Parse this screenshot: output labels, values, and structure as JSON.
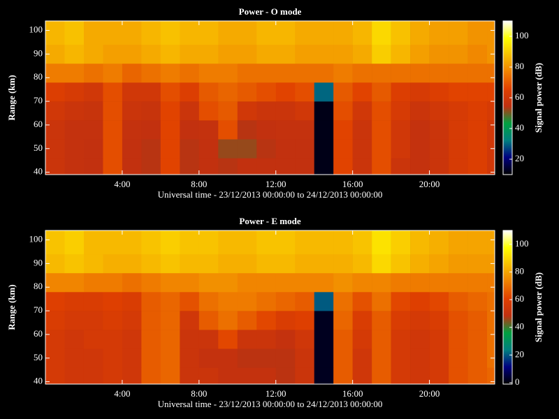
{
  "chart_data": [
    {
      "type": "heatmap",
      "title": "Power - O mode",
      "xlabel": "Universal time - 23/12/2013 00:00:00 to 24/12/2013 00:00:00",
      "ylabel": "Range (km)",
      "colorbar_label": "Signal power (dB)",
      "xlim": [
        0,
        23.4
      ],
      "ylim": [
        39,
        104
      ],
      "xticks": [
        {
          "value": 4,
          "label": "4:00"
        },
        {
          "value": 8,
          "label": "8:00"
        },
        {
          "value": 12,
          "label": "12:00"
        },
        {
          "value": 16,
          "label": "16:00"
        },
        {
          "value": 20,
          "label": "20:00"
        }
      ],
      "yticks": [
        40,
        50,
        60,
        70,
        80,
        90,
        100
      ],
      "zlim": [
        10,
        110
      ],
      "zticks": [
        20,
        40,
        60,
        80,
        100
      ],
      "colormap": [
        "#000000",
        "#000080",
        "#008080",
        "#00a040",
        "#c03010",
        "#e04000",
        "#f08000",
        "#f8c000",
        "#ffff00",
        "#ffffff"
      ],
      "x_bins": [
        0,
        1,
        2,
        3,
        4,
        5,
        6,
        7,
        8,
        9,
        10,
        11,
        12,
        13,
        14,
        15,
        16,
        17,
        18,
        19,
        20,
        21,
        22,
        23,
        23.4
      ],
      "y_bins": [
        39,
        46,
        54,
        62,
        70,
        78,
        86,
        94,
        104
      ],
      "values": [
        [
          58,
          56,
          55,
          68,
          55,
          54,
          66,
          54,
          55,
          54,
          55,
          55,
          55,
          55,
          12,
          66,
          58,
          68,
          58,
          56,
          58,
          62,
          64,
          60
        ],
        [
          58,
          56,
          55,
          68,
          55,
          54,
          66,
          54,
          55,
          52,
          52,
          54,
          55,
          55,
          12,
          66,
          58,
          68,
          60,
          56,
          58,
          62,
          64,
          60
        ],
        [
          58,
          56,
          56,
          68,
          56,
          55,
          66,
          55,
          56,
          68,
          54,
          55,
          56,
          56,
          12,
          66,
          58,
          68,
          60,
          56,
          58,
          62,
          64,
          60
        ],
        [
          60,
          58,
          57,
          68,
          58,
          57,
          66,
          58,
          68,
          70,
          60,
          58,
          58,
          60,
          12,
          68,
          60,
          68,
          62,
          58,
          60,
          62,
          64,
          62
        ],
        [
          64,
          62,
          60,
          68,
          60,
          60,
          68,
          64,
          70,
          72,
          70,
          68,
          66,
          68,
          30,
          70,
          66,
          70,
          64,
          62,
          64,
          66,
          66,
          66
        ],
        [
          76,
          76,
          74,
          76,
          72,
          74,
          76,
          74,
          76,
          76,
          74,
          74,
          74,
          74,
          74,
          76,
          74,
          74,
          74,
          74,
          74,
          74,
          74,
          74
        ],
        [
          84,
          86,
          84,
          82,
          82,
          84,
          86,
          84,
          84,
          82,
          82,
          84,
          84,
          82,
          82,
          82,
          84,
          90,
          86,
          82,
          80,
          80,
          78,
          80
        ],
        [
          86,
          88,
          84,
          84,
          84,
          86,
          88,
          86,
          86,
          84,
          84,
          86,
          86,
          84,
          84,
          84,
          86,
          92,
          88,
          84,
          82,
          82,
          80,
          80
        ]
      ]
    },
    {
      "type": "heatmap",
      "title": "Power - E mode",
      "xlabel": "Universal time - 23/12/2013 00:00:00 to 24/12/2013 00:00:00",
      "ylabel": "Range (km)",
      "colorbar_label": "Signal power (dB)",
      "xlim": [
        0,
        23.4
      ],
      "ylim": [
        39,
        104
      ],
      "xticks": [
        {
          "value": 4,
          "label": "4:00"
        },
        {
          "value": 8,
          "label": "8:00"
        },
        {
          "value": 12,
          "label": "12:00"
        },
        {
          "value": 16,
          "label": "16:00"
        },
        {
          "value": 20,
          "label": "20:00"
        }
      ],
      "yticks": [
        40,
        50,
        60,
        70,
        80,
        90,
        100
      ],
      "zlim": [
        -1,
        110
      ],
      "zticks": [
        0,
        20,
        40,
        60,
        80,
        100
      ],
      "colormap": [
        "#000000",
        "#000080",
        "#008080",
        "#00a040",
        "#c03010",
        "#e04000",
        "#f08000",
        "#f8c000",
        "#ffff00",
        "#ffffff"
      ],
      "x_bins": [
        0,
        1,
        2,
        3,
        4,
        5,
        6,
        7,
        8,
        9,
        10,
        11,
        12,
        13,
        14,
        15,
        16,
        17,
        18,
        19,
        20,
        21,
        22,
        23,
        23.4
      ],
      "y_bins": [
        39,
        46,
        54,
        62,
        70,
        78,
        86,
        94,
        104
      ],
      "values": [
        [
          56,
          54,
          54,
          56,
          54,
          66,
          68,
          52,
          52,
          50,
          50,
          50,
          48,
          52,
          2,
          66,
          54,
          66,
          56,
          54,
          56,
          64,
          66,
          68
        ],
        [
          56,
          54,
          54,
          56,
          54,
          66,
          68,
          52,
          50,
          50,
          48,
          48,
          48,
          52,
          2,
          66,
          54,
          66,
          56,
          54,
          56,
          64,
          66,
          70
        ],
        [
          56,
          54,
          56,
          56,
          54,
          66,
          68,
          52,
          52,
          62,
          52,
          52,
          50,
          54,
          2,
          66,
          56,
          66,
          56,
          54,
          56,
          64,
          66,
          70
        ],
        [
          58,
          56,
          56,
          58,
          56,
          66,
          68,
          54,
          66,
          70,
          66,
          62,
          58,
          60,
          2,
          68,
          58,
          66,
          58,
          56,
          58,
          64,
          66,
          70
        ],
        [
          60,
          58,
          58,
          60,
          58,
          66,
          68,
          64,
          70,
          72,
          72,
          70,
          68,
          66,
          20,
          70,
          64,
          70,
          62,
          60,
          62,
          66,
          68,
          70
        ],
        [
          74,
          74,
          72,
          72,
          70,
          72,
          74,
          74,
          76,
          76,
          74,
          74,
          74,
          74,
          74,
          76,
          74,
          74,
          72,
          72,
          72,
          72,
          72,
          72
        ],
        [
          84,
          86,
          84,
          82,
          82,
          84,
          86,
          84,
          84,
          82,
          82,
          84,
          84,
          82,
          82,
          82,
          84,
          90,
          86,
          82,
          80,
          78,
          78,
          78
        ],
        [
          86,
          88,
          84,
          84,
          84,
          86,
          88,
          86,
          86,
          84,
          84,
          86,
          86,
          84,
          84,
          84,
          86,
          92,
          88,
          84,
          82,
          80,
          80,
          80
        ]
      ]
    }
  ]
}
